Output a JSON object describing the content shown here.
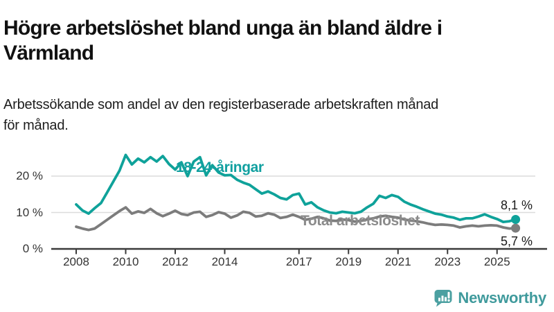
{
  "header": {
    "title": "Högre arbetslöshet bland unga än bland äldre i\nVärmland",
    "subtitle": "Arbetssökande som andel av den registerbaserade arbetskraften månad\nför månad."
  },
  "chart_data": {
    "type": "line",
    "x_start": 2008,
    "x_step": 0.25,
    "x_ticks": [
      {
        "year": 2008,
        "label": "2008"
      },
      {
        "year": 2010,
        "label": "2010"
      },
      {
        "year": 2012,
        "label": "2012"
      },
      {
        "year": 2014,
        "label": "2014"
      },
      {
        "year": 2017,
        "label": "2017"
      },
      {
        "year": 2019,
        "label": "2019"
      },
      {
        "year": 2021,
        "label": "2021"
      },
      {
        "year": 2023,
        "label": "2023"
      },
      {
        "year": 2025,
        "label": "2025"
      }
    ],
    "y_ticks": [
      {
        "value": 0,
        "label": "0 %"
      },
      {
        "value": 10,
        "label": "10 %"
      },
      {
        "value": 20,
        "label": "20 %"
      }
    ],
    "ylim": [
      0,
      28
    ],
    "grid": "horizontal",
    "unit": "%",
    "series": [
      {
        "name": "18-24-åringar",
        "color": "#0FA29A",
        "label_color": "#11A0A0",
        "end_label": "8,1 %",
        "end_value": 8.1,
        "values": [
          12.2,
          10.6,
          9.7,
          11.2,
          12.6,
          15.5,
          18.5,
          21.5,
          25.8,
          23.2,
          24.8,
          23.8,
          25.2,
          24.0,
          25.5,
          23.3,
          21.8,
          23.8,
          20.0,
          24.0,
          25.2,
          20.2,
          23.0,
          21.0,
          20.2,
          20.3,
          19.0,
          18.2,
          17.6,
          16.4,
          15.2,
          15.8,
          15.0,
          14.0,
          13.6,
          14.8,
          15.2,
          12.2,
          12.8,
          11.4,
          10.6,
          10.0,
          9.8,
          10.2,
          10.0,
          9.8,
          10.2,
          11.4,
          12.4,
          14.6,
          14.0,
          14.8,
          14.3,
          13.0,
          12.2,
          11.6,
          10.9,
          10.3,
          9.7,
          9.4,
          8.9,
          8.6,
          8.0,
          8.4,
          8.4,
          8.9,
          9.5,
          8.8,
          8.2,
          7.4,
          7.6,
          8.1
        ]
      },
      {
        "name": "Total arbetslöshet",
        "color": "#7C7C7C",
        "label_color": "#8B8B8B",
        "end_label": "5,7 %",
        "end_value": 5.7,
        "values": [
          6.1,
          5.6,
          5.2,
          5.6,
          6.8,
          8.0,
          9.2,
          10.4,
          11.4,
          9.7,
          10.3,
          9.9,
          11.0,
          9.8,
          9.0,
          9.7,
          10.5,
          9.6,
          9.3,
          10.0,
          10.2,
          8.8,
          9.3,
          10.1,
          9.7,
          8.6,
          9.2,
          10.2,
          9.9,
          8.9,
          9.1,
          9.8,
          9.4,
          8.5,
          8.8,
          9.4,
          8.8,
          8.0,
          8.3,
          8.8,
          8.4,
          7.8,
          7.7,
          8.1,
          7.9,
          7.5,
          7.7,
          8.1,
          8.4,
          8.9,
          9.1,
          8.8,
          8.6,
          8.1,
          7.8,
          7.6,
          7.3,
          6.9,
          6.6,
          6.7,
          6.6,
          6.4,
          5.9,
          6.2,
          6.4,
          6.2,
          6.4,
          6.5,
          6.4,
          5.9,
          5.6,
          5.7
        ]
      }
    ],
    "colors": {
      "grid": "#DCDCDC",
      "axis": "#3A3A3A",
      "tick_text": "#333333"
    }
  },
  "footer": {
    "brand": "Newsworthy",
    "brand_color": "#3F9A9C",
    "icon_color": "#4BA0A1"
  }
}
